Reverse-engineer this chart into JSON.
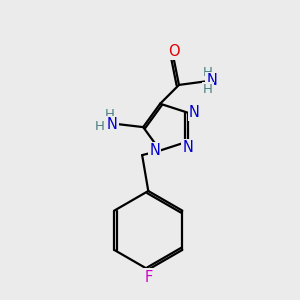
{
  "background_color": "#ebebeb",
  "atom_colors": {
    "C": "#000000",
    "N": "#0000cc",
    "O": "#dd0000",
    "F": "#cc00cc",
    "H": "#4a8080"
  },
  "bond_color": "#000000",
  "bond_width": 1.6,
  "figsize": [
    3.0,
    3.0
  ],
  "dpi": 100
}
